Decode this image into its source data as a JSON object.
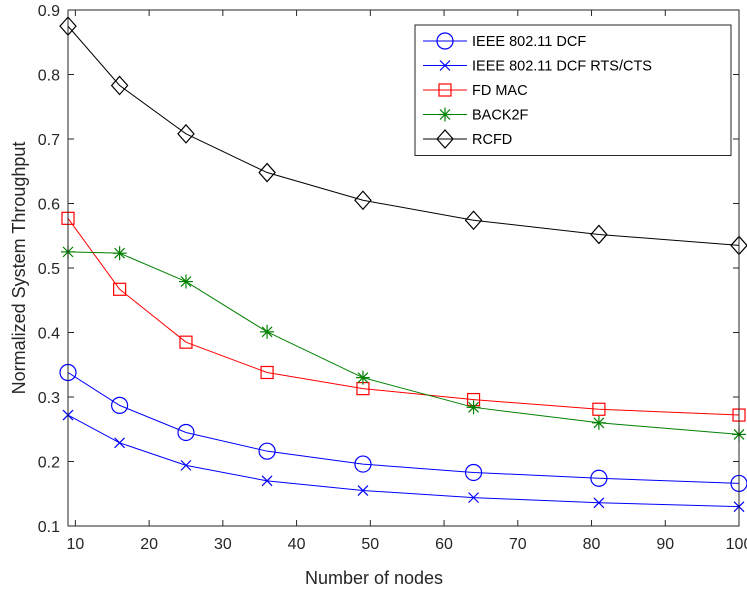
{
  "chart_data": {
    "type": "line",
    "title": "",
    "xlabel": "Number of nodes",
    "ylabel": "Normalized System Throughput",
    "xlim": [
      9,
      100
    ],
    "ylim": [
      0.1,
      0.9
    ],
    "xticks": [
      10,
      20,
      30,
      40,
      50,
      60,
      70,
      80,
      90,
      100
    ],
    "xtick_labels": [
      "10",
      "20",
      "30",
      "40",
      "50",
      "60",
      "70",
      "80",
      "90",
      "100"
    ],
    "yticks": [
      0.1,
      0.2,
      0.3,
      0.4,
      0.5,
      0.6,
      0.7,
      0.8,
      0.9
    ],
    "ytick_labels": [
      "0.1",
      "0.2",
      "0.3",
      "0.4",
      "0.5",
      "0.6",
      "0.7",
      "0.8",
      "0.9"
    ],
    "grid": false,
    "legend_position": "top-right",
    "x": [
      9,
      16,
      25,
      36,
      49,
      64,
      81,
      100
    ],
    "series": [
      {
        "name": "IEEE 802.11 DCF",
        "color": "#0000ff",
        "marker": "circle",
        "values": [
          0.338,
          0.287,
          0.245,
          0.216,
          0.196,
          0.183,
          0.174,
          0.166
        ]
      },
      {
        "name": "IEEE 802.11 DCF RTS/CTS",
        "color": "#0000ff",
        "marker": "x",
        "values": [
          0.272,
          0.229,
          0.194,
          0.17,
          0.155,
          0.144,
          0.136,
          0.13
        ]
      },
      {
        "name": "FD MAC",
        "color": "#ff0000",
        "marker": "square",
        "values": [
          0.577,
          0.467,
          0.385,
          0.338,
          0.313,
          0.296,
          0.281,
          0.272
        ]
      },
      {
        "name": "BACK2F",
        "color": "#008000",
        "marker": "asterisk",
        "values": [
          0.525,
          0.523,
          0.479,
          0.401,
          0.33,
          0.284,
          0.26,
          0.242
        ]
      },
      {
        "name": "RCFD",
        "color": "#000000",
        "marker": "diamond",
        "values": [
          0.875,
          0.783,
          0.708,
          0.648,
          0.605,
          0.574,
          0.552,
          0.535
        ]
      }
    ]
  }
}
